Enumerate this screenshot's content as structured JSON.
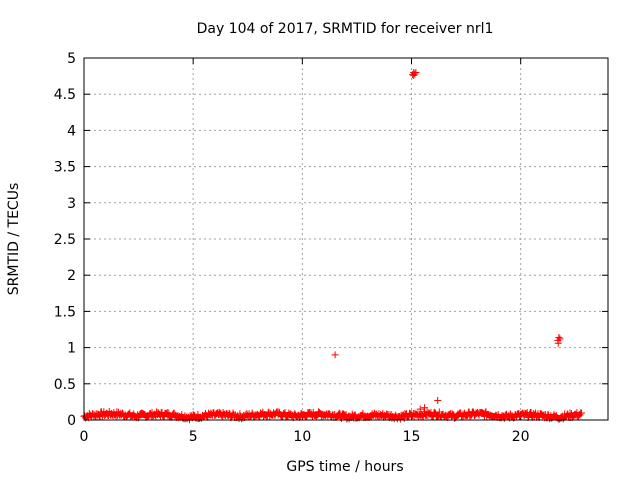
{
  "chart_data": {
    "type": "scatter",
    "title": "Day 104 of 2017, SRMTID for receiver nrl1",
    "xlabel": "GPS time / hours",
    "ylabel": "SRMTID / TECUs",
    "xlim": [
      0,
      24
    ],
    "ylim": [
      0,
      5
    ],
    "x_ticks": [
      "0",
      "5",
      "10",
      "15",
      "20"
    ],
    "y_ticks": [
      "0",
      "0.5",
      "1",
      "1.5",
      "2",
      "2.5",
      "3",
      "3.5",
      "4",
      "4.5",
      "5"
    ],
    "grid": true,
    "marker": "+",
    "series_color": "#ff0000",
    "outliers": [
      {
        "x": 11.5,
        "y": 0.9
      },
      {
        "x": 15.05,
        "y": 4.77
      },
      {
        "x": 15.1,
        "y": 4.8
      },
      {
        "x": 15.15,
        "y": 4.78
      },
      {
        "x": 15.2,
        "y": 4.8
      },
      {
        "x": 15.1,
        "y": 4.76
      },
      {
        "x": 15.4,
        "y": 0.15
      },
      {
        "x": 15.6,
        "y": 0.17
      },
      {
        "x": 16.2,
        "y": 0.27
      },
      {
        "x": 21.7,
        "y": 1.1
      },
      {
        "x": 21.75,
        "y": 1.14
      },
      {
        "x": 21.8,
        "y": 1.12
      },
      {
        "x": 21.72,
        "y": 1.06
      }
    ],
    "baseline": {
      "x_start": 0,
      "x_end": 22.8,
      "typical_min": 0.0,
      "typical_max": 0.15
    }
  }
}
